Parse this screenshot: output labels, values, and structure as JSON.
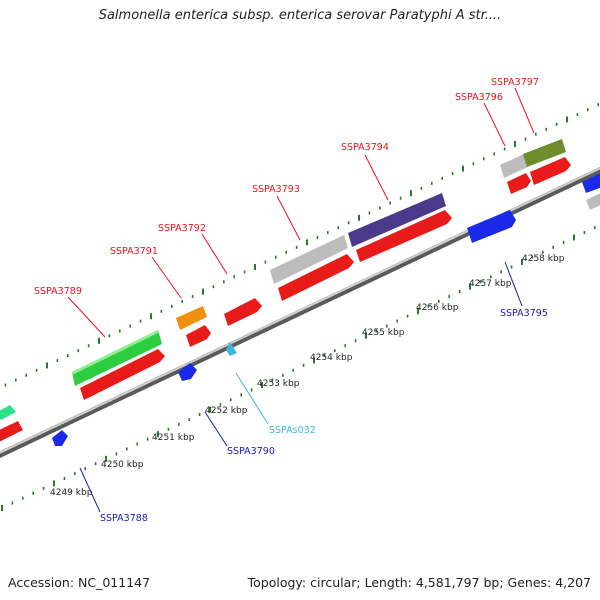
{
  "title": "Salmonella enterica subsp. enterica serovar Paratyphi A str....",
  "footer": {
    "accession": "Accession: NC_011147",
    "topology": "Topology: circular; Length: 4,581,797 bp; Genes: 4,207"
  },
  "colors": {
    "forward_label": "#e8141c",
    "reverse_label": "#1a1ab4",
    "rna_label": "#3ab8e0",
    "backbone": "#9a9a9a",
    "tick": "#2a7a2a"
  },
  "scale_labels": [
    "4249 kbp",
    "4250 kbp",
    "4251 kbp",
    "4252 kbp",
    "4253 kbp",
    "4254 kbp",
    "4255 kbp",
    "4256 kbp",
    "4257 kbp",
    "4258 kbp"
  ],
  "gene_labels": [
    {
      "text": "SSPA3789",
      "color": "red"
    },
    {
      "text": "SSPA3791",
      "color": "red"
    },
    {
      "text": "SSPA3792",
      "color": "red"
    },
    {
      "text": "SSPA3793",
      "color": "red"
    },
    {
      "text": "SSPA3794",
      "color": "red"
    },
    {
      "text": "SSPA3796",
      "color": "red"
    },
    {
      "text": "SSPA3797",
      "color": "red"
    },
    {
      "text": "SSPA3788",
      "color": "blue"
    },
    {
      "text": "SSPA3790",
      "color": "blue"
    },
    {
      "text": "SSPAs032",
      "color": "cyan"
    },
    {
      "text": "SSPA3795",
      "color": "blue"
    }
  ]
}
